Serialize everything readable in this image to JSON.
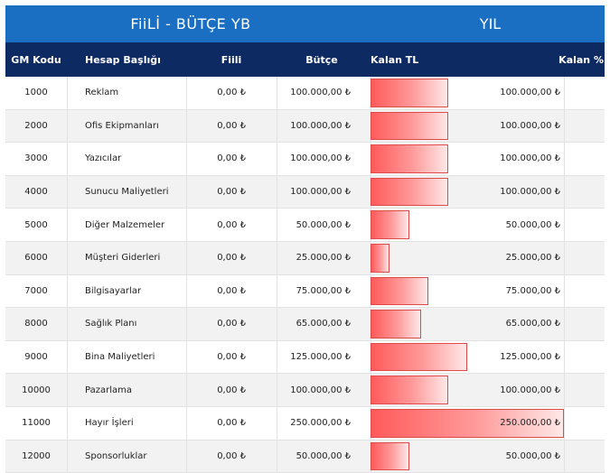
{
  "header": {
    "left_title": "FiiLİ - BÜTÇE YB",
    "right_title": "YIL"
  },
  "columns": {
    "code": "GM Kodu",
    "account": "Hesap Başlığı",
    "actual": "Fiili",
    "budget": "Bütçe",
    "remaining_tl": "Kalan TL",
    "remaining_pct": "Kalan %"
  },
  "rows": [
    {
      "code": "1000",
      "account": "Reklam",
      "actual": "0,00 ₺",
      "budget": "100.000,00 ₺",
      "remaining": "100.000,00 ₺",
      "ratio": 0.4
    },
    {
      "code": "2000",
      "account": "Ofis Ekipmanları",
      "actual": "0,00 ₺",
      "budget": "100.000,00 ₺",
      "remaining": "100.000,00 ₺",
      "ratio": 0.4
    },
    {
      "code": "3000",
      "account": "Yazıcılar",
      "actual": "0,00 ₺",
      "budget": "100.000,00 ₺",
      "remaining": "100.000,00 ₺",
      "ratio": 0.4
    },
    {
      "code": "4000",
      "account": "Sunucu Maliyetleri",
      "actual": "0,00 ₺",
      "budget": "100.000,00 ₺",
      "remaining": "100.000,00 ₺",
      "ratio": 0.4
    },
    {
      "code": "5000",
      "account": "Diğer Malzemeler",
      "actual": "0,00 ₺",
      "budget": "50.000,00 ₺",
      "remaining": "50.000,00 ₺",
      "ratio": 0.2
    },
    {
      "code": "6000",
      "account": "Müşteri Giderleri",
      "actual": "0,00 ₺",
      "budget": "25.000,00 ₺",
      "remaining": "25.000,00 ₺",
      "ratio": 0.1
    },
    {
      "code": "7000",
      "account": "Bilgisayarlar",
      "actual": "0,00 ₺",
      "budget": "75.000,00 ₺",
      "remaining": "75.000,00 ₺",
      "ratio": 0.3
    },
    {
      "code": "8000",
      "account": "Sağlık Planı",
      "actual": "0,00 ₺",
      "budget": "65.000,00 ₺",
      "remaining": "65.000,00 ₺",
      "ratio": 0.26
    },
    {
      "code": "9000",
      "account": "Bina Maliyetleri",
      "actual": "0,00 ₺",
      "budget": "125.000,00 ₺",
      "remaining": "125.000,00 ₺",
      "ratio": 0.5
    },
    {
      "code": "10000",
      "account": "Pazarlama",
      "actual": "0,00 ₺",
      "budget": "100.000,00 ₺",
      "remaining": "100.000,00 ₺",
      "ratio": 0.4
    },
    {
      "code": "11000",
      "account": "Hayır İşleri",
      "actual": "0,00 ₺",
      "budget": "250.000,00 ₺",
      "remaining": "250.000,00 ₺",
      "ratio": 1.0
    },
    {
      "code": "12000",
      "account": "Sponsorluklar",
      "actual": "0,00 ₺",
      "budget": "50.000,00 ₺",
      "remaining": "50.000,00 ₺",
      "ratio": 0.2
    }
  ]
}
